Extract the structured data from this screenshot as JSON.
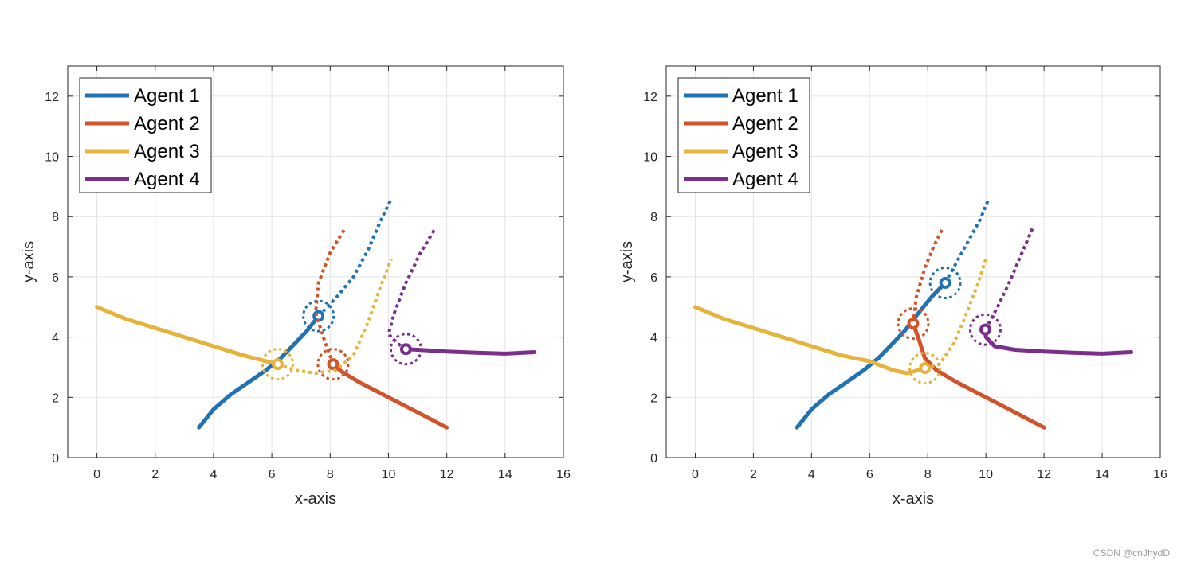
{
  "watermark": "CSDN @cnJhydD",
  "colors": {
    "agent1": "#2171b5",
    "agent2": "#d1532a",
    "agent3": "#e6b43c",
    "agent4": "#7b2e8c",
    "grid": "#e3e3e3",
    "axis": "#262626"
  },
  "chart_data": [
    {
      "type": "line",
      "title": "",
      "xlabel": "x-axis",
      "ylabel": "y-axis",
      "xlim": [
        -1,
        16
      ],
      "ylim": [
        0,
        13
      ],
      "xticks": [
        0,
        2,
        4,
        6,
        8,
        10,
        12,
        14,
        16
      ],
      "yticks": [
        0,
        2,
        4,
        6,
        8,
        10,
        12
      ],
      "grid": true,
      "legend_position": "top-left",
      "series": [
        {
          "name": "Agent 1",
          "color_key": "agent1",
          "past": [
            [
              3.5,
              1.0
            ],
            [
              4.0,
              1.6
            ],
            [
              4.6,
              2.1
            ],
            [
              5.2,
              2.5
            ],
            [
              5.8,
              2.9
            ],
            [
              6.3,
              3.3
            ],
            [
              6.8,
              3.8
            ],
            [
              7.2,
              4.2
            ],
            [
              7.6,
              4.7
            ]
          ],
          "current": [
            7.6,
            4.7
          ],
          "future": [
            [
              7.6,
              4.7
            ],
            [
              8.2,
              5.3
            ],
            [
              8.8,
              6.0
            ],
            [
              9.3,
              6.9
            ],
            [
              9.7,
              7.8
            ],
            [
              10.1,
              8.6
            ]
          ]
        },
        {
          "name": "Agent 2",
          "color_key": "agent2",
          "past": [
            [
              12.0,
              1.0
            ],
            [
              11.0,
              1.5
            ],
            [
              10.0,
              2.0
            ],
            [
              9.0,
              2.5
            ],
            [
              8.4,
              2.85
            ],
            [
              8.1,
              3.1
            ]
          ],
          "current": [
            8.1,
            3.1
          ],
          "future": [
            [
              8.1,
              3.1
            ],
            [
              7.8,
              3.9
            ],
            [
              7.5,
              4.8
            ],
            [
              7.6,
              5.8
            ],
            [
              8.0,
              6.8
            ],
            [
              8.5,
              7.6
            ]
          ]
        },
        {
          "name": "Agent 3",
          "color_key": "agent3",
          "past": [
            [
              0.0,
              5.0
            ],
            [
              1.0,
              4.6
            ],
            [
              2.0,
              4.3
            ],
            [
              3.0,
              4.0
            ],
            [
              4.0,
              3.7
            ],
            [
              5.0,
              3.4
            ],
            [
              5.8,
              3.2
            ],
            [
              6.2,
              3.1
            ]
          ],
          "current": [
            6.2,
            3.1
          ],
          "future": [
            [
              6.2,
              3.1
            ],
            [
              6.8,
              2.9
            ],
            [
              7.5,
              2.8
            ],
            [
              8.2,
              2.9
            ],
            [
              8.8,
              3.4
            ],
            [
              9.3,
              4.5
            ],
            [
              9.7,
              5.6
            ],
            [
              10.1,
              6.6
            ]
          ]
        },
        {
          "name": "Agent 4",
          "color_key": "agent4",
          "past": [
            [
              15.0,
              3.5
            ],
            [
              14.0,
              3.45
            ],
            [
              13.0,
              3.48
            ],
            [
              12.0,
              3.52
            ],
            [
              11.0,
              3.58
            ],
            [
              10.6,
              3.6
            ]
          ],
          "current": [
            10.6,
            3.6
          ],
          "future": [
            [
              10.6,
              3.6
            ],
            [
              10.3,
              3.8
            ],
            [
              10.0,
              4.1
            ],
            [
              10.2,
              4.8
            ],
            [
              10.6,
              5.8
            ],
            [
              11.1,
              6.8
            ],
            [
              11.6,
              7.6
            ]
          ]
        }
      ]
    },
    {
      "type": "line",
      "title": "",
      "xlabel": "x-axis",
      "ylabel": "y-axis",
      "xlim": [
        -1,
        16
      ],
      "ylim": [
        0,
        13
      ],
      "xticks": [
        0,
        2,
        4,
        6,
        8,
        10,
        12,
        14,
        16
      ],
      "yticks": [
        0,
        2,
        4,
        6,
        8,
        10,
        12
      ],
      "grid": true,
      "legend_position": "top-left",
      "series": [
        {
          "name": "Agent 1",
          "color_key": "agent1",
          "past": [
            [
              3.5,
              1.0
            ],
            [
              4.0,
              1.6
            ],
            [
              4.6,
              2.1
            ],
            [
              5.2,
              2.5
            ],
            [
              5.8,
              2.9
            ],
            [
              6.3,
              3.3
            ],
            [
              6.8,
              3.8
            ],
            [
              7.2,
              4.2
            ],
            [
              7.6,
              4.7
            ],
            [
              8.1,
              5.3
            ],
            [
              8.6,
              5.8
            ]
          ],
          "current": [
            8.6,
            5.8
          ],
          "future": [
            [
              8.6,
              5.8
            ],
            [
              9.0,
              6.5
            ],
            [
              9.4,
              7.2
            ],
            [
              9.8,
              7.9
            ],
            [
              10.1,
              8.6
            ]
          ]
        },
        {
          "name": "Agent 2",
          "color_key": "agent2",
          "past": [
            [
              12.0,
              1.0
            ],
            [
              11.0,
              1.5
            ],
            [
              10.0,
              2.0
            ],
            [
              9.0,
              2.5
            ],
            [
              8.3,
              2.9
            ],
            [
              7.9,
              3.3
            ],
            [
              7.7,
              3.9
            ],
            [
              7.5,
              4.45
            ]
          ],
          "current": [
            7.5,
            4.45
          ],
          "future": [
            [
              7.5,
              4.45
            ],
            [
              7.6,
              5.3
            ],
            [
              7.9,
              6.3
            ],
            [
              8.2,
              7.0
            ],
            [
              8.5,
              7.6
            ]
          ]
        },
        {
          "name": "Agent 3",
          "color_key": "agent3",
          "past": [
            [
              0.0,
              5.0
            ],
            [
              1.0,
              4.6
            ],
            [
              2.0,
              4.3
            ],
            [
              3.0,
              4.0
            ],
            [
              4.0,
              3.7
            ],
            [
              5.0,
              3.4
            ],
            [
              6.0,
              3.2
            ],
            [
              6.8,
              2.9
            ],
            [
              7.3,
              2.8
            ],
            [
              7.9,
              2.97
            ]
          ],
          "current": [
            7.9,
            2.97
          ],
          "future": [
            [
              7.9,
              2.97
            ],
            [
              8.4,
              3.1
            ],
            [
              8.9,
              3.8
            ],
            [
              9.3,
              4.7
            ],
            [
              9.7,
              5.7
            ],
            [
              10.0,
              6.6
            ]
          ]
        },
        {
          "name": "Agent 4",
          "color_key": "agent4",
          "past": [
            [
              15.0,
              3.5
            ],
            [
              14.0,
              3.45
            ],
            [
              13.0,
              3.48
            ],
            [
              12.0,
              3.52
            ],
            [
              11.0,
              3.58
            ],
            [
              10.3,
              3.7
            ],
            [
              10.0,
              4.0
            ],
            [
              9.98,
              4.25
            ]
          ],
          "current": [
            9.98,
            4.25
          ],
          "future": [
            [
              9.98,
              4.25
            ],
            [
              10.4,
              5.0
            ],
            [
              10.8,
              5.8
            ],
            [
              11.2,
              6.7
            ],
            [
              11.6,
              7.6
            ]
          ]
        }
      ]
    }
  ]
}
